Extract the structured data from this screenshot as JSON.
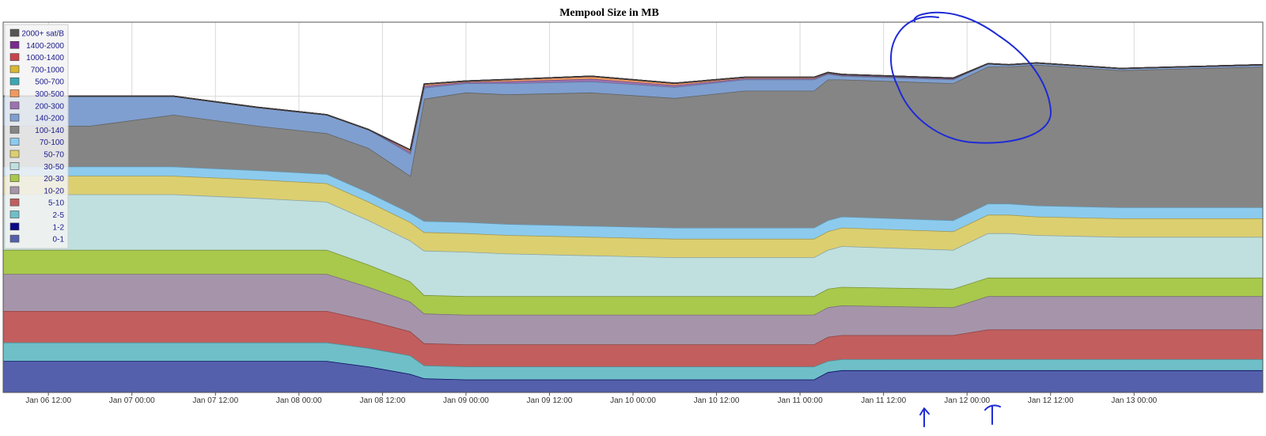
{
  "chart_data": {
    "type": "area",
    "stacked": true,
    "title": "Mempool Size in MB",
    "xlabel": "",
    "ylabel": "",
    "grid": true,
    "legend_position": "top-left",
    "x_tick_labels": [
      "Jan 06 12:00",
      "Jan 07 00:00",
      "Jan 07 12:00",
      "Jan 08 00:00",
      "Jan 08 12:00",
      "Jan 09 00:00",
      "Jan 09 12:00",
      "Jan 10 00:00",
      "Jan 10 12:00",
      "Jan 11 00:00",
      "Jan 11 12:00",
      "Jan 12 00:00",
      "Jan 12 12:00",
      "Jan 13 00:00"
    ],
    "x_range_hours": [
      -6.5,
      174.5
    ],
    "y_range": [
      0,
      100
    ],
    "x_hours": [
      -6.5,
      6,
      18,
      30,
      40,
      46,
      52,
      54,
      60,
      66,
      78,
      90,
      100,
      110,
      112,
      114,
      130,
      135,
      138,
      142,
      154,
      174.5
    ],
    "series": [
      {
        "name": "0-1",
        "color": "#5460ab",
        "values": [
          8.5,
          8.5,
          8.5,
          8.5,
          8.5,
          7,
          5,
          3.8,
          3.5,
          3.5,
          3.5,
          3.5,
          3.5,
          3.5,
          5.5,
          6,
          6,
          6,
          6,
          6,
          6,
          6
        ]
      },
      {
        "name": "1-2",
        "color": "#0a0a8a",
        "values": [
          0,
          0,
          0,
          0,
          0,
          0,
          0,
          0,
          0,
          0,
          0,
          0,
          0,
          0,
          0,
          0,
          0,
          0,
          0,
          0,
          0,
          0
        ]
      },
      {
        "name": "2-5",
        "color": "#6fbfc8",
        "values": [
          5,
          5,
          5,
          5,
          5,
          5,
          5,
          3.5,
          3.5,
          3.5,
          3.5,
          3.5,
          3.5,
          3.5,
          3,
          3,
          3,
          3,
          3,
          3,
          3,
          3
        ]
      },
      {
        "name": "5-10",
        "color": "#c25e5e",
        "values": [
          8.5,
          8.5,
          8.5,
          8.5,
          8.5,
          7.5,
          6.5,
          6,
          6,
          6,
          6,
          6,
          6,
          6,
          6.5,
          6.5,
          6.5,
          8,
          8,
          8,
          8,
          8
        ]
      },
      {
        "name": "10-20",
        "color": "#a695aa",
        "values": [
          10,
          10,
          10,
          10,
          10,
          9,
          8,
          8,
          8,
          8,
          8,
          8,
          8,
          8,
          8,
          8,
          7.5,
          9,
          9,
          9,
          9,
          9
        ]
      },
      {
        "name": "20-30",
        "color": "#a8c94c",
        "values": [
          6.5,
          6.5,
          6.5,
          6.5,
          6.5,
          6,
          5.5,
          5,
          5,
          5,
          5,
          5,
          5,
          5,
          5,
          5,
          5,
          5,
          5,
          5,
          5,
          5
        ]
      },
      {
        "name": "30-50",
        "color": "#bfe0df",
        "values": [
          15,
          15,
          15,
          14,
          13,
          12,
          11,
          12,
          12,
          11.5,
          11,
          10.5,
          10.5,
          10.5,
          10.5,
          11,
          10.5,
          12,
          12,
          11.5,
          11,
          11
        ]
      },
      {
        "name": "50-70",
        "color": "#dccf70",
        "values": [
          5,
          5,
          5,
          5,
          5,
          5,
          5,
          5,
          5,
          5,
          5,
          5,
          5,
          5,
          5,
          5,
          5,
          5,
          5,
          5,
          5,
          5
        ]
      },
      {
        "name": "70-100",
        "color": "#8ccbee",
        "values": [
          2.5,
          2.5,
          2.5,
          2.5,
          2.5,
          2.5,
          2.5,
          3,
          3,
          3,
          3,
          3,
          3,
          3,
          3,
          3,
          3,
          3,
          3,
          3,
          3,
          3
        ]
      },
      {
        "name": "100-140",
        "color": "#858585",
        "values": [
          11,
          11,
          14,
          12,
          11,
          12,
          10,
          33,
          35,
          35,
          36,
          35,
          37,
          37,
          38,
          37,
          37,
          37,
          37,
          38,
          37,
          38
        ]
      },
      {
        "name": "140-200",
        "color": "#7f9fd0",
        "values": [
          8,
          8,
          5,
          5,
          5,
          5,
          6,
          3,
          2.5,
          3,
          3,
          3,
          3,
          3,
          1.5,
          1,
          1,
          0.8,
          0.5,
          0.5,
          0.5,
          0.5
        ]
      },
      {
        "name": "200-300",
        "color": "#9d72b2",
        "values": [
          0,
          0,
          0,
          0,
          0,
          0,
          0.5,
          0.5,
          0.3,
          0.5,
          0.7,
          0.5,
          0.3,
          0.3,
          0.2,
          0.2,
          0.2,
          0,
          0,
          0,
          0,
          0
        ]
      },
      {
        "name": "300-500",
        "color": "#f0995e",
        "values": [
          0,
          0,
          0,
          0,
          0,
          0,
          0.5,
          0.5,
          0.3,
          0.5,
          0.7,
          0.5,
          0.3,
          0.3,
          0.2,
          0.2,
          0.2,
          0,
          0,
          0,
          0,
          0
        ]
      },
      {
        "name": "500-700",
        "color": "#3aa8b3",
        "values": [
          0,
          0,
          0,
          0,
          0,
          0,
          0,
          0,
          0,
          0,
          0,
          0,
          0,
          0,
          0,
          0,
          0,
          0,
          0,
          0,
          0,
          0
        ]
      },
      {
        "name": "700-1000",
        "color": "#d9b832",
        "values": [
          0,
          0,
          0,
          0,
          0,
          0,
          0,
          0,
          0,
          0,
          0,
          0,
          0,
          0,
          0,
          0,
          0,
          0,
          0,
          0,
          0,
          0
        ]
      },
      {
        "name": "1000-1400",
        "color": "#c8454a",
        "values": [
          0,
          0,
          0,
          0,
          0,
          0,
          0,
          0,
          0,
          0,
          0,
          0,
          0,
          0,
          0,
          0,
          0,
          0,
          0,
          0,
          0,
          0
        ]
      },
      {
        "name": "1400-2000",
        "color": "#7a2a8e",
        "values": [
          0,
          0,
          0,
          0,
          0,
          0,
          0,
          0,
          0,
          0,
          0,
          0,
          0,
          0,
          0,
          0,
          0,
          0,
          0,
          0,
          0,
          0
        ]
      },
      {
        "name": "2000+ sat/B",
        "color": "#555555",
        "values": [
          0,
          0,
          0,
          0,
          0,
          0,
          0,
          0,
          0,
          0,
          0,
          0,
          0,
          0,
          0,
          0,
          0,
          0,
          0,
          0,
          0,
          0
        ]
      }
    ],
    "legend_order": [
      "2000+ sat/B",
      "1400-2000",
      "1000-1400",
      "700-1000",
      "500-700",
      "300-500",
      "200-300",
      "140-200",
      "100-140",
      "70-100",
      "50-70",
      "30-50",
      "20-30",
      "10-20",
      "5-10",
      "2-5",
      "1-2",
      "0-1"
    ]
  }
}
